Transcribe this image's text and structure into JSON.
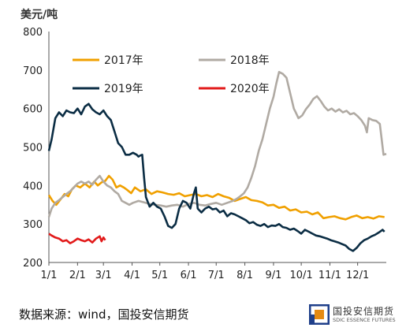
{
  "chart_data": {
    "type": "line",
    "title": "",
    "ylabel": "美元/吨",
    "xlabel": "",
    "ylim": [
      200,
      800
    ],
    "yticks": [
      200,
      300,
      400,
      500,
      600,
      700,
      800
    ],
    "x_domain": [
      1,
      366
    ],
    "xticks": [
      {
        "label": "1/1",
        "day": 1
      },
      {
        "label": "2/1",
        "day": 32
      },
      {
        "label": "3/1",
        "day": 60
      },
      {
        "label": "4/1",
        "day": 91
      },
      {
        "label": "5/1",
        "day": 121
      },
      {
        "label": "6/1",
        "day": 152
      },
      {
        "label": "7/1",
        "day": 182
      },
      {
        "label": "8/1",
        "day": 213
      },
      {
        "label": "9/1",
        "day": 244
      },
      {
        "label": "10/1",
        "day": 274
      },
      {
        "label": "11/1",
        "day": 305
      },
      {
        "label": "12/1",
        "day": 335
      }
    ],
    "grid": false,
    "legend_position": "top",
    "series": [
      {
        "name": "2017年",
        "color": "#f0a000",
        "points": [
          [
            1,
            375
          ],
          [
            5,
            360
          ],
          [
            9,
            350
          ],
          [
            14,
            365
          ],
          [
            18,
            378
          ],
          [
            22,
            372
          ],
          [
            26,
            390
          ],
          [
            30,
            400
          ],
          [
            35,
            395
          ],
          [
            40,
            405
          ],
          [
            45,
            395
          ],
          [
            50,
            410
          ],
          [
            54,
            400
          ],
          [
            58,
            408
          ],
          [
            62,
            412
          ],
          [
            66,
            425
          ],
          [
            70,
            415
          ],
          [
            74,
            395
          ],
          [
            78,
            400
          ],
          [
            82,
            395
          ],
          [
            86,
            388
          ],
          [
            90,
            380
          ],
          [
            94,
            395
          ],
          [
            100,
            385
          ],
          [
            106,
            390
          ],
          [
            112,
            378
          ],
          [
            118,
            385
          ],
          [
            124,
            382
          ],
          [
            130,
            378
          ],
          [
            136,
            376
          ],
          [
            142,
            380
          ],
          [
            148,
            372
          ],
          [
            154,
            375
          ],
          [
            160,
            378
          ],
          [
            166,
            372
          ],
          [
            172,
            375
          ],
          [
            178,
            370
          ],
          [
            184,
            378
          ],
          [
            190,
            372
          ],
          [
            196,
            368
          ],
          [
            202,
            360
          ],
          [
            208,
            365
          ],
          [
            214,
            370
          ],
          [
            220,
            362
          ],
          [
            226,
            360
          ],
          [
            232,
            356
          ],
          [
            238,
            348
          ],
          [
            244,
            350
          ],
          [
            250,
            342
          ],
          [
            256,
            345
          ],
          [
            262,
            335
          ],
          [
            268,
            338
          ],
          [
            274,
            330
          ],
          [
            280,
            332
          ],
          [
            286,
            325
          ],
          [
            292,
            330
          ],
          [
            298,
            315
          ],
          [
            304,
            318
          ],
          [
            310,
            320
          ],
          [
            316,
            315
          ],
          [
            322,
            312
          ],
          [
            328,
            318
          ],
          [
            334,
            322
          ],
          [
            340,
            315
          ],
          [
            346,
            318
          ],
          [
            352,
            314
          ],
          [
            358,
            320
          ],
          [
            364,
            318
          ]
        ]
      },
      {
        "name": "2018年",
        "color": "#b0aaa3",
        "points": [
          [
            1,
            318
          ],
          [
            4,
            340
          ],
          [
            8,
            355
          ],
          [
            12,
            362
          ],
          [
            16,
            370
          ],
          [
            20,
            378
          ],
          [
            24,
            385
          ],
          [
            28,
            395
          ],
          [
            32,
            405
          ],
          [
            36,
            410
          ],
          [
            40,
            405
          ],
          [
            44,
            410
          ],
          [
            48,
            402
          ],
          [
            52,
            415
          ],
          [
            56,
            425
          ],
          [
            60,
            410
          ],
          [
            64,
            400
          ],
          [
            68,
            395
          ],
          [
            72,
            385
          ],
          [
            76,
            378
          ],
          [
            80,
            360
          ],
          [
            84,
            355
          ],
          [
            88,
            350
          ],
          [
            92,
            355
          ],
          [
            98,
            360
          ],
          [
            104,
            356
          ],
          [
            110,
            352
          ],
          [
            116,
            350
          ],
          [
            122,
            348
          ],
          [
            128,
            345
          ],
          [
            134,
            348
          ],
          [
            140,
            350
          ],
          [
            146,
            345
          ],
          [
            152,
            352
          ],
          [
            158,
            355
          ],
          [
            164,
            350
          ],
          [
            170,
            348
          ],
          [
            176,
            352
          ],
          [
            182,
            355
          ],
          [
            188,
            350
          ],
          [
            194,
            355
          ],
          [
            200,
            360
          ],
          [
            204,
            365
          ],
          [
            208,
            372
          ],
          [
            212,
            380
          ],
          [
            216,
            395
          ],
          [
            220,
            420
          ],
          [
            224,
            450
          ],
          [
            228,
            490
          ],
          [
            232,
            520
          ],
          [
            236,
            560
          ],
          [
            240,
            600
          ],
          [
            244,
            630
          ],
          [
            247,
            665
          ],
          [
            250,
            695
          ],
          [
            254,
            690
          ],
          [
            258,
            680
          ],
          [
            261,
            650
          ],
          [
            264,
            620
          ],
          [
            266,
            600
          ],
          [
            268,
            590
          ],
          [
            271,
            575
          ],
          [
            275,
            582
          ],
          [
            279,
            598
          ],
          [
            283,
            610
          ],
          [
            287,
            625
          ],
          [
            291,
            632
          ],
          [
            295,
            620
          ],
          [
            299,
            605
          ],
          [
            303,
            595
          ],
          [
            307,
            600
          ],
          [
            311,
            592
          ],
          [
            315,
            598
          ],
          [
            319,
            590
          ],
          [
            323,
            594
          ],
          [
            327,
            585
          ],
          [
            331,
            588
          ],
          [
            335,
            580
          ],
          [
            339,
            570
          ],
          [
            343,
            555
          ],
          [
            345,
            538
          ],
          [
            347,
            575
          ],
          [
            351,
            570
          ],
          [
            355,
            568
          ],
          [
            359,
            560
          ],
          [
            363,
            480
          ],
          [
            366,
            482
          ]
        ]
      },
      {
        "name": "2019年",
        "color": "#0b2d44",
        "points": [
          [
            1,
            490
          ],
          [
            4,
            520
          ],
          [
            8,
            575
          ],
          [
            12,
            590
          ],
          [
            16,
            580
          ],
          [
            20,
            595
          ],
          [
            24,
            590
          ],
          [
            28,
            588
          ],
          [
            32,
            600
          ],
          [
            36,
            585
          ],
          [
            40,
            605
          ],
          [
            44,
            612
          ],
          [
            48,
            598
          ],
          [
            52,
            590
          ],
          [
            56,
            585
          ],
          [
            60,
            595
          ],
          [
            64,
            580
          ],
          [
            68,
            570
          ],
          [
            72,
            540
          ],
          [
            76,
            510
          ],
          [
            80,
            500
          ],
          [
            84,
            480
          ],
          [
            88,
            480
          ],
          [
            92,
            485
          ],
          [
            96,
            480
          ],
          [
            98,
            475
          ],
          [
            100,
            478
          ],
          [
            102,
            480
          ],
          [
            104,
            420
          ],
          [
            106,
            370
          ],
          [
            110,
            345
          ],
          [
            114,
            355
          ],
          [
            118,
            345
          ],
          [
            122,
            340
          ],
          [
            126,
            320
          ],
          [
            130,
            295
          ],
          [
            134,
            290
          ],
          [
            138,
            300
          ],
          [
            142,
            340
          ],
          [
            146,
            360
          ],
          [
            150,
            355
          ],
          [
            154,
            340
          ],
          [
            158,
            380
          ],
          [
            160,
            395
          ],
          [
            162,
            340
          ],
          [
            166,
            330
          ],
          [
            170,
            340
          ],
          [
            174,
            345
          ],
          [
            178,
            338
          ],
          [
            182,
            340
          ],
          [
            186,
            330
          ],
          [
            190,
            335
          ],
          [
            194,
            320
          ],
          [
            198,
            328
          ],
          [
            202,
            325
          ],
          [
            206,
            320
          ],
          [
            210,
            315
          ],
          [
            214,
            310
          ],
          [
            218,
            302
          ],
          [
            222,
            305
          ],
          [
            226,
            298
          ],
          [
            230,
            295
          ],
          [
            234,
            300
          ],
          [
            238,
            292
          ],
          [
            242,
            296
          ],
          [
            246,
            295
          ],
          [
            250,
            300
          ],
          [
            254,
            292
          ],
          [
            258,
            290
          ],
          [
            262,
            285
          ],
          [
            266,
            288
          ],
          [
            270,
            282
          ],
          [
            274,
            275
          ],
          [
            278,
            285
          ],
          [
            282,
            280
          ],
          [
            286,
            275
          ],
          [
            290,
            270
          ],
          [
            294,
            268
          ],
          [
            298,
            265
          ],
          [
            302,
            262
          ],
          [
            306,
            258
          ],
          [
            310,
            255
          ],
          [
            314,
            252
          ],
          [
            318,
            248
          ],
          [
            322,
            244
          ],
          [
            326,
            235
          ],
          [
            330,
            230
          ],
          [
            334,
            238
          ],
          [
            338,
            250
          ],
          [
            342,
            258
          ],
          [
            346,
            262
          ],
          [
            350,
            268
          ],
          [
            354,
            272
          ],
          [
            358,
            278
          ],
          [
            362,
            285
          ],
          [
            364,
            280
          ]
        ]
      },
      {
        "name": "2020年",
        "color": "#e21a1a",
        "points": [
          [
            1,
            275
          ],
          [
            4,
            270
          ],
          [
            8,
            265
          ],
          [
            12,
            262
          ],
          [
            16,
            255
          ],
          [
            20,
            258
          ],
          [
            24,
            250
          ],
          [
            28,
            255
          ],
          [
            32,
            262
          ],
          [
            36,
            258
          ],
          [
            40,
            255
          ],
          [
            44,
            260
          ],
          [
            48,
            252
          ],
          [
            52,
            262
          ],
          [
            56,
            268
          ],
          [
            58,
            255
          ],
          [
            60,
            265
          ],
          [
            62,
            258
          ]
        ]
      }
    ]
  },
  "footer": {
    "source": "数据来源：wind，国投安信期货",
    "logo_cn": "国投安信期货",
    "logo_en": "SDIC ESSENCE FUTURES"
  }
}
